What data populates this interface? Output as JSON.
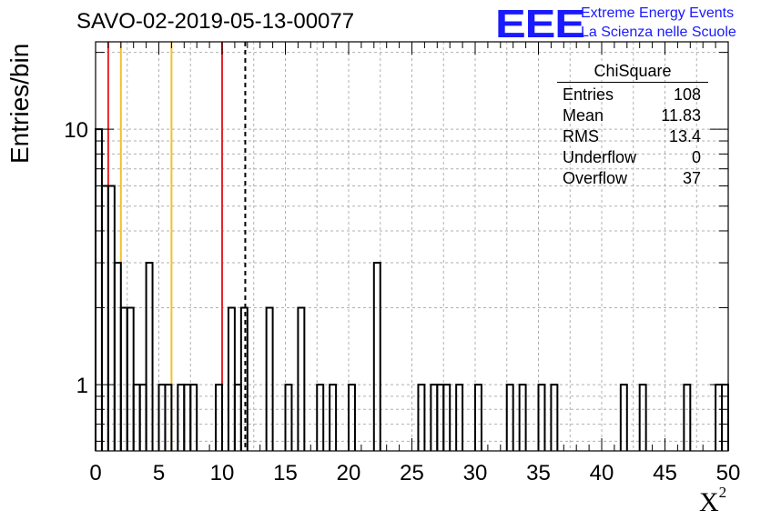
{
  "header": {
    "title": "SAVO-02-2019-05-13-00077",
    "logo_text": "EEE",
    "logo_line1": "Extreme Energy Events",
    "logo_line2": "La Scienza nelle Scuole"
  },
  "stats_box": {
    "title": "ChiSquare",
    "rows": [
      {
        "label": "Entries",
        "value": "108"
      },
      {
        "label": "Mean",
        "value": "11.83"
      },
      {
        "label": "RMS",
        "value": "13.4"
      },
      {
        "label": "Underflow",
        "value": "0"
      },
      {
        "label": "Overflow",
        "value": "37"
      }
    ]
  },
  "chart_data": {
    "type": "bar",
    "style": "step-histogram",
    "title": "SAVO-02-2019-05-13-00077",
    "xlabel": "X",
    "xlabel_superscript": "2",
    "ylabel": "Entries/bin",
    "xlim": [
      0,
      50
    ],
    "ylim": [
      0.55,
      22
    ],
    "yscale": "log",
    "grid": true,
    "bin_width": 0.5,
    "x_ticks": [
      0,
      5,
      10,
      15,
      20,
      25,
      30,
      35,
      40,
      45,
      50
    ],
    "x_tick_labels": [
      "0",
      "5",
      "10",
      "15",
      "20",
      "25",
      "30",
      "35",
      "40",
      "45",
      "50"
    ],
    "y_ticks": [
      1,
      10
    ],
    "y_tick_labels": [
      "1",
      "10"
    ],
    "bins": [
      {
        "x": 0.0,
        "count": 10
      },
      {
        "x": 0.5,
        "count": 6
      },
      {
        "x": 1.0,
        "count": 6
      },
      {
        "x": 1.5,
        "count": 3
      },
      {
        "x": 2.0,
        "count": 2
      },
      {
        "x": 2.5,
        "count": 2
      },
      {
        "x": 3.0,
        "count": 1
      },
      {
        "x": 3.5,
        "count": 1
      },
      {
        "x": 4.0,
        "count": 3
      },
      {
        "x": 5.0,
        "count": 1
      },
      {
        "x": 5.5,
        "count": 1
      },
      {
        "x": 6.5,
        "count": 1
      },
      {
        "x": 7.0,
        "count": 1
      },
      {
        "x": 7.5,
        "count": 1
      },
      {
        "x": 9.5,
        "count": 1
      },
      {
        "x": 10.5,
        "count": 2
      },
      {
        "x": 11.0,
        "count": 1
      },
      {
        "x": 11.5,
        "count": 2
      },
      {
        "x": 13.5,
        "count": 2
      },
      {
        "x": 15.0,
        "count": 1
      },
      {
        "x": 16.0,
        "count": 2
      },
      {
        "x": 17.5,
        "count": 1
      },
      {
        "x": 18.5,
        "count": 1
      },
      {
        "x": 20.0,
        "count": 1
      },
      {
        "x": 22.0,
        "count": 3
      },
      {
        "x": 25.5,
        "count": 1
      },
      {
        "x": 26.5,
        "count": 1
      },
      {
        "x": 27.0,
        "count": 1
      },
      {
        "x": 27.5,
        "count": 1
      },
      {
        "x": 28.5,
        "count": 1
      },
      {
        "x": 30.0,
        "count": 1
      },
      {
        "x": 32.5,
        "count": 1
      },
      {
        "x": 33.5,
        "count": 1
      },
      {
        "x": 35.0,
        "count": 1
      },
      {
        "x": 36.0,
        "count": 1
      },
      {
        "x": 41.5,
        "count": 1
      },
      {
        "x": 43.0,
        "count": 1
      },
      {
        "x": 46.5,
        "count": 1
      },
      {
        "x": 49.0,
        "count": 1
      },
      {
        "x": 49.5,
        "count": 1
      }
    ],
    "vertical_lines": [
      {
        "x": 1.0,
        "color": "#e8262a",
        "style": "solid"
      },
      {
        "x": 2.0,
        "color": "#f2c12e",
        "style": "solid"
      },
      {
        "x": 6.0,
        "color": "#f2c12e",
        "style": "solid"
      },
      {
        "x": 10.0,
        "color": "#e8262a",
        "style": "solid"
      },
      {
        "x": 11.83,
        "color": "#000000",
        "style": "dashed"
      }
    ]
  }
}
